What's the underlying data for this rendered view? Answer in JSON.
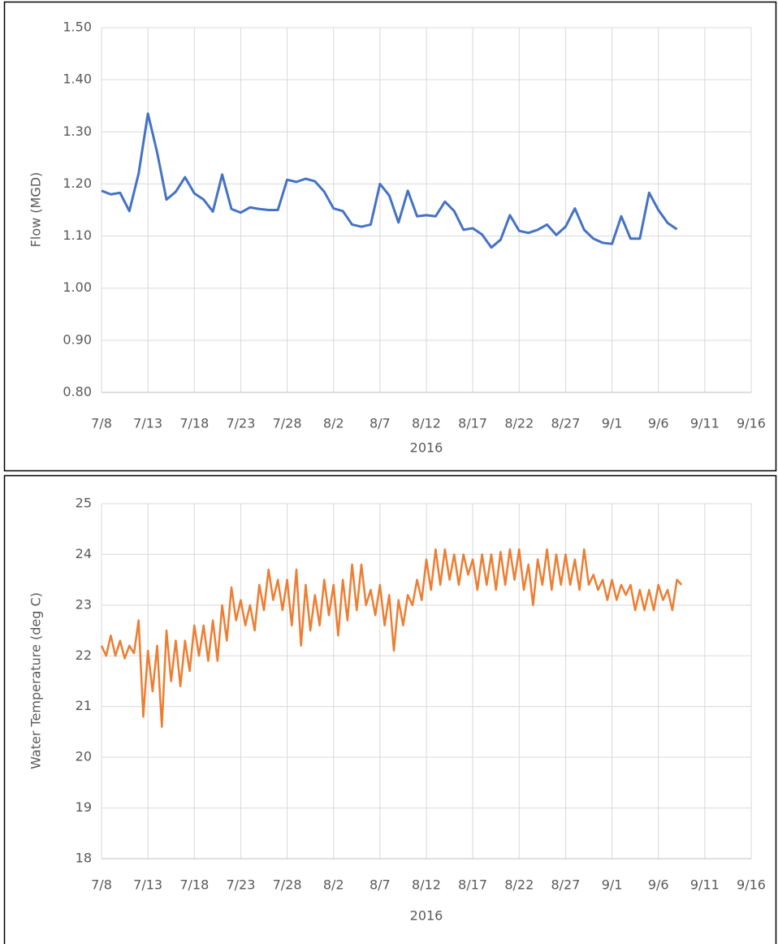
{
  "chart_data": [
    {
      "type": "line",
      "xlabel": "2016",
      "ylabel": "Flow (MGD)",
      "xlim": [
        0,
        70
      ],
      "xticks": [
        {
          "value": 0,
          "label": "7/8"
        },
        {
          "value": 5,
          "label": "7/13"
        },
        {
          "value": 10,
          "label": "7/18"
        },
        {
          "value": 15,
          "label": "7/23"
        },
        {
          "value": 20,
          "label": "7/28"
        },
        {
          "value": 25,
          "label": "8/2"
        },
        {
          "value": 30,
          "label": "8/7"
        },
        {
          "value": 35,
          "label": "8/12"
        },
        {
          "value": 40,
          "label": "8/17"
        },
        {
          "value": 45,
          "label": "8/22"
        },
        {
          "value": 50,
          "label": "8/27"
        },
        {
          "value": 55,
          "label": "9/1"
        },
        {
          "value": 60,
          "label": "9/6"
        },
        {
          "value": 65,
          "label": "9/11"
        },
        {
          "value": 70,
          "label": "9/16"
        }
      ],
      "ylim": [
        0.8,
        1.5
      ],
      "yticks": [
        {
          "value": 0.8,
          "label": "0.80"
        },
        {
          "value": 0.9,
          "label": "0.90"
        },
        {
          "value": 1.0,
          "label": "1.00"
        },
        {
          "value": 1.1,
          "label": "1.10"
        },
        {
          "value": 1.2,
          "label": "1.20"
        },
        {
          "value": 1.3,
          "label": "1.30"
        },
        {
          "value": 1.4,
          "label": "1.40"
        },
        {
          "value": 1.5,
          "label": "1.50"
        }
      ],
      "grid": true,
      "series": [
        {
          "color": "#4472c4",
          "x": [
            0,
            1,
            2,
            3,
            4,
            5,
            6,
            7,
            8,
            9,
            10,
            11,
            12,
            13,
            14,
            15,
            16,
            17,
            18,
            19,
            20,
            21,
            22,
            23,
            24,
            25,
            26,
            27,
            28,
            29,
            30,
            31,
            32,
            33,
            34,
            35,
            36,
            37,
            38,
            39,
            40,
            41,
            42,
            43,
            44,
            45,
            46,
            47,
            48,
            49,
            50,
            51,
            52,
            53,
            54,
            55,
            56,
            57,
            58,
            59,
            60,
            61,
            62
          ],
          "values": [
            1.187,
            1.18,
            1.183,
            1.148,
            1.22,
            1.335,
            1.26,
            1.17,
            1.185,
            1.213,
            1.182,
            1.17,
            1.147,
            1.218,
            1.152,
            1.145,
            1.155,
            1.152,
            1.15,
            1.15,
            1.208,
            1.204,
            1.21,
            1.205,
            1.185,
            1.153,
            1.148,
            1.122,
            1.118,
            1.122,
            1.2,
            1.178,
            1.126,
            1.187,
            1.138,
            1.14,
            1.138,
            1.166,
            1.148,
            1.112,
            1.115,
            1.103,
            1.078,
            1.093,
            1.14,
            1.11,
            1.106,
            1.112,
            1.122,
            1.102,
            1.118,
            1.153,
            1.112,
            1.095,
            1.087,
            1.085,
            1.138,
            1.095,
            1.095,
            1.183,
            1.15,
            1.125,
            1.113
          ]
        }
      ]
    },
    {
      "type": "line",
      "xlabel": "2016",
      "ylabel": "Water Temperature (deg C)",
      "xlim": [
        0,
        70
      ],
      "xticks": [
        {
          "value": 0,
          "label": "7/8"
        },
        {
          "value": 5,
          "label": "7/13"
        },
        {
          "value": 10,
          "label": "7/18"
        },
        {
          "value": 15,
          "label": "7/23"
        },
        {
          "value": 20,
          "label": "7/28"
        },
        {
          "value": 25,
          "label": "8/2"
        },
        {
          "value": 30,
          "label": "8/7"
        },
        {
          "value": 35,
          "label": "8/12"
        },
        {
          "value": 40,
          "label": "8/17"
        },
        {
          "value": 45,
          "label": "8/22"
        },
        {
          "value": 50,
          "label": "8/27"
        },
        {
          "value": 55,
          "label": "9/1"
        },
        {
          "value": 60,
          "label": "9/6"
        },
        {
          "value": 65,
          "label": "9/11"
        },
        {
          "value": 70,
          "label": "9/16"
        }
      ],
      "ylim": [
        18,
        25
      ],
      "yticks": [
        18,
        19,
        20,
        21,
        22,
        23,
        24,
        25
      ],
      "grid": true,
      "series": [
        {
          "color": "#ed7d31",
          "x": [
            0,
            0.5,
            1,
            1.5,
            2,
            2.5,
            3,
            3.5,
            4,
            4.5,
            5,
            5.5,
            6,
            6.5,
            7,
            7.5,
            8,
            8.5,
            9,
            9.5,
            10,
            10.5,
            11,
            11.5,
            12,
            12.5,
            13,
            13.5,
            14,
            14.5,
            15,
            15.5,
            16,
            16.5,
            17,
            17.5,
            18,
            18.5,
            19,
            19.5,
            20,
            20.5,
            21,
            21.5,
            22,
            22.5,
            23,
            23.5,
            24,
            24.5,
            25,
            25.5,
            26,
            26.5,
            27,
            27.5,
            28,
            28.5,
            29,
            29.5,
            30,
            30.5,
            31,
            31.5,
            32,
            32.5,
            33,
            33.5,
            34,
            34.5,
            35,
            35.5,
            36,
            36.5,
            37,
            37.5,
            38,
            38.5,
            39,
            39.5,
            40,
            40.5,
            41,
            41.5,
            42,
            42.5,
            43,
            43.5,
            44,
            44.5,
            45,
            45.5,
            46,
            46.5,
            47,
            47.5,
            48,
            48.5,
            49,
            49.5,
            50,
            50.5,
            51,
            51.5,
            52,
            52.5,
            53,
            53.5,
            54,
            54.5,
            55,
            55.5,
            56,
            56.5,
            57,
            57.5,
            58,
            58.5,
            59,
            59.5,
            60,
            60.5,
            61,
            61.5,
            62,
            62.5
          ],
          "values": [
            22.2,
            22.0,
            22.4,
            22.0,
            22.3,
            21.95,
            22.2,
            22.05,
            22.7,
            20.8,
            22.1,
            21.3,
            22.2,
            20.6,
            22.5,
            21.5,
            22.3,
            21.4,
            22.3,
            21.7,
            22.6,
            22.0,
            22.6,
            21.9,
            22.7,
            21.9,
            23.0,
            22.3,
            23.35,
            22.7,
            23.1,
            22.6,
            23.0,
            22.5,
            23.4,
            22.9,
            23.7,
            23.1,
            23.5,
            22.9,
            23.5,
            22.6,
            23.7,
            22.2,
            23.4,
            22.5,
            23.2,
            22.6,
            23.5,
            22.8,
            23.4,
            22.4,
            23.5,
            22.7,
            23.8,
            22.9,
            23.8,
            23.0,
            23.3,
            22.8,
            23.4,
            22.6,
            23.2,
            22.1,
            23.1,
            22.6,
            23.2,
            23.0,
            23.5,
            23.1,
            23.9,
            23.3,
            24.1,
            23.4,
            24.1,
            23.5,
            24.0,
            23.4,
            24.0,
            23.6,
            23.9,
            23.3,
            24.0,
            23.4,
            24.0,
            23.3,
            24.05,
            23.4,
            24.1,
            23.5,
            24.1,
            23.3,
            23.8,
            23.0,
            23.9,
            23.4,
            24.1,
            23.3,
            24.0,
            23.4,
            24.0,
            23.4,
            23.9,
            23.3,
            24.1,
            23.4,
            23.6,
            23.3,
            23.5,
            23.1,
            23.5,
            23.1,
            23.4,
            23.2,
            23.4,
            22.9,
            23.3,
            22.9,
            23.3,
            22.9,
            23.4,
            23.1,
            23.3,
            22.9,
            23.5,
            23.4
          ]
        }
      ]
    }
  ]
}
